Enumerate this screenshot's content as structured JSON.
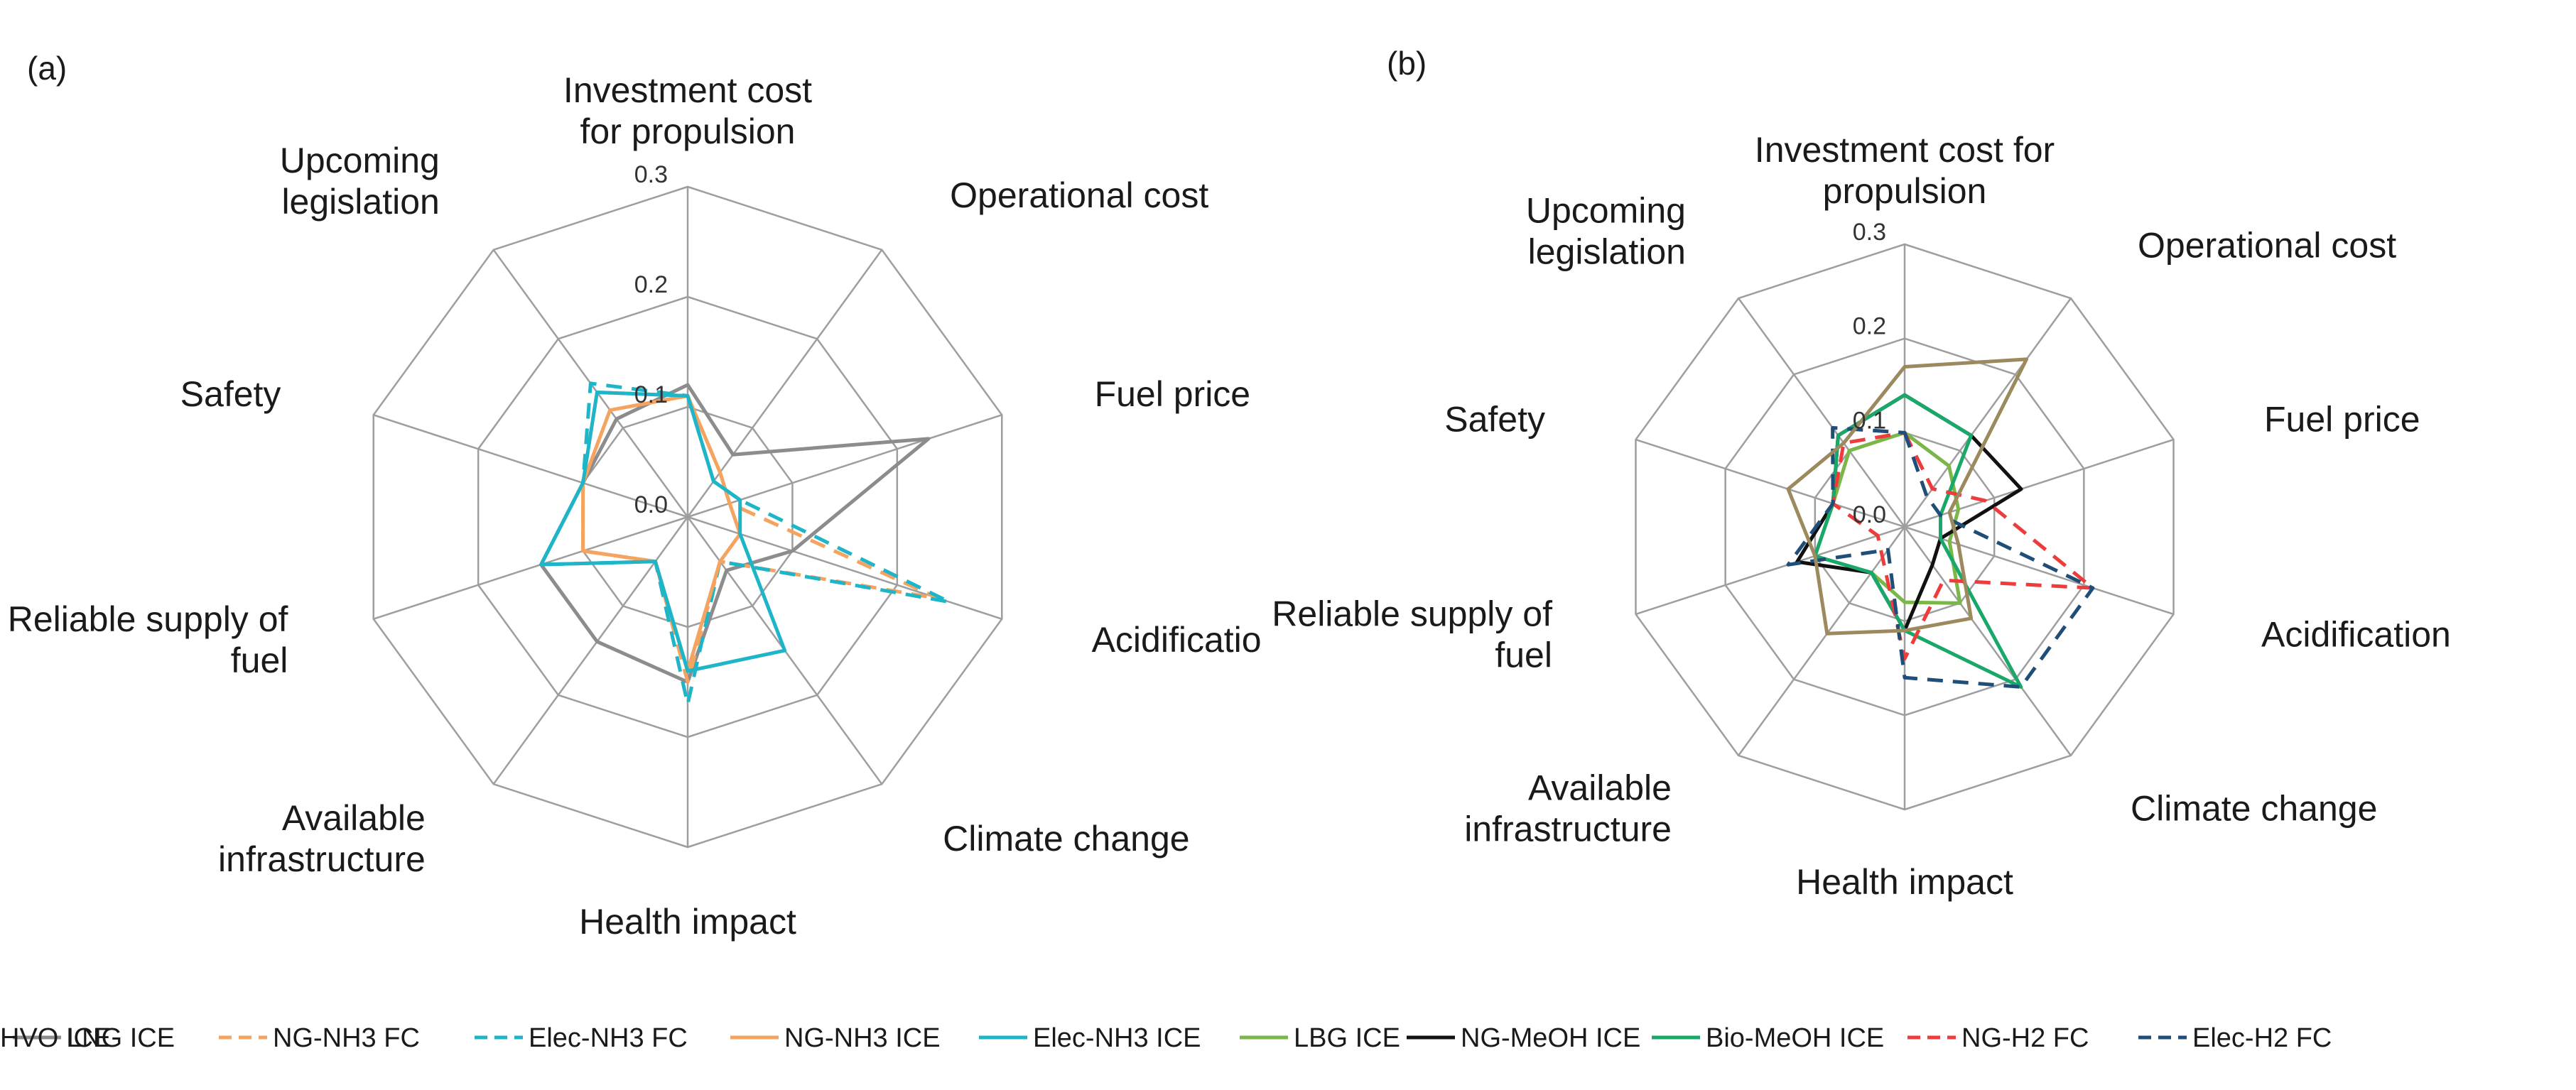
{
  "chart_data": [
    {
      "type": "radar",
      "panel_label": "(a)",
      "axes": [
        [
          "Investment cost",
          "for propulsion"
        ],
        [
          "Operational cost"
        ],
        [
          "Fuel price"
        ],
        [
          "Acidificatio"
        ],
        [
          "Climate change"
        ],
        [
          "Health impact"
        ],
        [
          "Available",
          "infrastructure"
        ],
        [
          "Reliable supply of",
          "fuel"
        ],
        [
          "Safety"
        ],
        [
          "Upcoming",
          "legislation"
        ]
      ],
      "ticks": [
        "0.0",
        "0.1",
        "0.2",
        "0.3"
      ],
      "range": [
        0,
        0.3
      ],
      "series": [
        {
          "name": "LNG ICE",
          "color": "#8c8c8c",
          "dash": "solid",
          "values": [
            0.12,
            0.07,
            0.23,
            0.1,
            0.06,
            0.15,
            0.14,
            0.14,
            0.1,
            0.11
          ]
        },
        {
          "name": "NG-NH3 FC",
          "color": "#f4a460",
          "dash": "dashed",
          "values": [
            0.11,
            0.05,
            0.04,
            0.24,
            0.05,
            0.15,
            0.05,
            0.1,
            0.1,
            0.14
          ]
        },
        {
          "name": "Elec-NH3 FC",
          "color": "#1fb5c8",
          "dash": "dashed",
          "values": [
            0.11,
            0.04,
            0.05,
            0.25,
            0.05,
            0.17,
            0.05,
            0.14,
            0.1,
            0.15
          ]
        },
        {
          "name": "NG-NH3 ICE",
          "color": "#f4a460",
          "dash": "solid",
          "values": [
            0.11,
            0.05,
            0.04,
            0.05,
            0.05,
            0.14,
            0.05,
            0.1,
            0.1,
            0.12
          ]
        },
        {
          "name": "Elec-NH3 ICE",
          "color": "#1fb5c8",
          "dash": "solid",
          "values": [
            0.11,
            0.04,
            0.05,
            0.05,
            0.15,
            0.14,
            0.05,
            0.14,
            0.1,
            0.14
          ]
        }
      ]
    },
    {
      "type": "radar",
      "panel_label": "(b)",
      "axes": [
        [
          "Investment cost for",
          "propulsion"
        ],
        [
          "Operational cost"
        ],
        [
          "Fuel price"
        ],
        [
          "Acidification"
        ],
        [
          "Climate change"
        ],
        [
          "Health impact"
        ],
        [
          "Available",
          "infrastructure"
        ],
        [
          "Reliable supply of",
          "fuel"
        ],
        [
          "Safety"
        ],
        [
          "Upcoming",
          "legislation"
        ]
      ],
      "ticks": [
        "0.0",
        "0.1",
        "0.2",
        "0.3"
      ],
      "range": [
        0,
        0.3
      ],
      "series": [
        {
          "name": "LBG ICE",
          "color": "#7ab648",
          "dash": "solid",
          "values": [
            0.1,
            0.08,
            0.06,
            0.05,
            0.1,
            0.08,
            0.06,
            0.1,
            0.08,
            0.1
          ]
        },
        {
          "name": "NG-MeOH ICE",
          "color": "#111111",
          "dash": "solid",
          "values": [
            0.14,
            0.12,
            0.13,
            0.04,
            0.05,
            0.11,
            0.06,
            0.12,
            0.08,
            0.12
          ]
        },
        {
          "name": "Bio-MeOH ICE",
          "color": "#1aa86a",
          "dash": "solid",
          "values": [
            0.14,
            0.12,
            0.04,
            0.04,
            0.21,
            0.11,
            0.06,
            0.1,
            0.08,
            0.12
          ]
        },
        {
          "name": "NG-H2 FC",
          "color": "#ee3b3b",
          "dash": "dashed",
          "values": [
            0.1,
            0.05,
            0.09,
            0.21,
            0.07,
            0.14,
            0.04,
            0.03,
            0.08,
            0.11
          ]
        },
        {
          "name": "Elec-H2 FC",
          "color": "#1f4e79",
          "dash": "dashed",
          "values": [
            0.1,
            0.04,
            0.04,
            0.21,
            0.21,
            0.16,
            0.03,
            0.13,
            0.08,
            0.13
          ]
        },
        {
          "name": "HVO ICE",
          "color": "#9c8a5e",
          "dash": "solid",
          "values": [
            0.17,
            0.22,
            0.05,
            0.06,
            0.12,
            0.11,
            0.14,
            0.1,
            0.13,
            0.11
          ]
        }
      ]
    }
  ]
}
